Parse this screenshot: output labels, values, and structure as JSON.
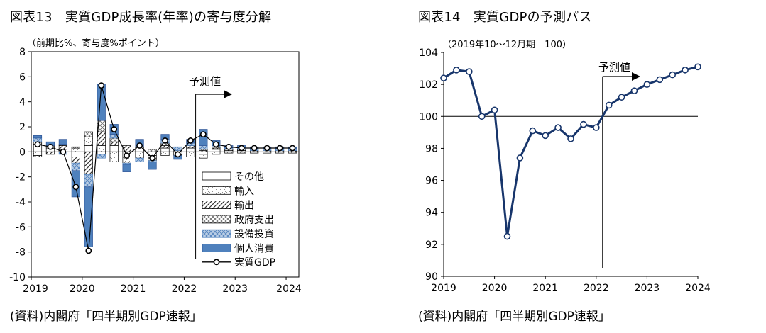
{
  "chart_data": [
    {
      "type": "bar",
      "stacked": true,
      "title": "図表13　実質GDP成長率(年率)の寄与度分解",
      "unit_label": "（前期比%、寄与度%ポイント）",
      "annotation": "予測値",
      "source": "(資料)内閣府「四半期別GDP速報」",
      "ylim": [
        -10,
        8
      ],
      "yticks": [
        -10,
        -8,
        -6,
        -4,
        -2,
        0,
        2,
        4,
        6,
        8
      ],
      "xtick_labels": [
        "2019",
        "2020",
        "2021",
        "2022",
        "2023",
        "2024"
      ],
      "forecast_start_index": 13,
      "grid": false,
      "legend_position": "bottom-right",
      "series": [
        {
          "name": "その他",
          "values": [
            0.6,
            0.3,
            0.2,
            -0.4,
            0.5,
            -0.2,
            0.5,
            -0.4,
            0.4,
            -0.3,
            0.3,
            -0.2,
            0.3,
            -0.2,
            0.2,
            0.1,
            0.1,
            0.0,
            0.0,
            0.0,
            0.0
          ]
        },
        {
          "name": "輸入",
          "values": [
            -0.3,
            0.1,
            0.0,
            0.3,
            0.7,
            0.5,
            -0.8,
            -0.5,
            -0.4,
            -0.2,
            -0.3,
            0.1,
            -0.4,
            -0.3,
            -0.2,
            -0.1,
            -0.1,
            -0.1,
            -0.1,
            -0.1,
            -0.1
          ]
        },
        {
          "name": "輸出",
          "values": [
            -0.1,
            -0.2,
            0.3,
            -0.5,
            -1.8,
            1.1,
            0.3,
            0.5,
            -0.1,
            -0.2,
            0.2,
            -0.1,
            0.2,
            0.1,
            0.1,
            0.1,
            0.1,
            0.1,
            0.1,
            0.1,
            0.1
          ]
        },
        {
          "name": "政府支出",
          "values": [
            0.2,
            0.1,
            0.1,
            0.1,
            0.4,
            0.9,
            0.3,
            0.0,
            0.0,
            0.2,
            0.2,
            0.0,
            0.0,
            0.1,
            0.1,
            0.0,
            0.0,
            0.0,
            0.0,
            0.0,
            0.0
          ]
        },
        {
          "name": "設備投資",
          "values": [
            0.3,
            0.0,
            -0.2,
            -0.6,
            -1.0,
            -0.3,
            0.3,
            -0.1,
            -0.3,
            -0.1,
            0.3,
            0.3,
            0.2,
            0.3,
            0.1,
            0.1,
            0.1,
            0.1,
            0.1,
            0.1,
            0.1
          ]
        },
        {
          "name": "個人消費",
          "values": [
            0.2,
            0.3,
            0.4,
            -2.1,
            -4.8,
            2.9,
            0.8,
            -0.6,
            0.6,
            -0.6,
            0.4,
            -0.3,
            0.3,
            1.3,
            0.4,
            0.2,
            0.2,
            0.2,
            0.2,
            0.2,
            0.2
          ]
        }
      ],
      "line": {
        "name": "実質GDP",
        "values": [
          0.6,
          0.4,
          0.0,
          -2.8,
          -7.9,
          5.3,
          1.8,
          -0.3,
          0.5,
          -0.5,
          0.9,
          -0.2,
          0.9,
          1.4,
          0.6,
          0.4,
          0.3,
          0.3,
          0.3,
          0.3,
          0.3
        ]
      }
    },
    {
      "type": "line",
      "title": "図表14　実質GDPの予測パス",
      "unit_label": "（2019年10～12月期＝100）",
      "annotation": "予測値",
      "source": "(資料)内閣府「四半期別GDP速報」",
      "ylim": [
        90,
        104
      ],
      "yticks": [
        90,
        92,
        94,
        96,
        98,
        100,
        102,
        104
      ],
      "xtick_labels": [
        "2019",
        "2020",
        "2021",
        "2022",
        "2023",
        "2024"
      ],
      "reference_line": 100,
      "forecast_start_index": 13,
      "grid": false,
      "values": [
        102.4,
        102.9,
        102.8,
        100.0,
        100.4,
        92.5,
        97.4,
        99.1,
        98.8,
        99.3,
        98.6,
        99.5,
        99.3,
        100.7,
        101.2,
        101.6,
        102.0,
        102.3,
        102.6,
        102.9,
        103.1
      ]
    }
  ],
  "colors": {
    "accent_blue": "#4f81bd",
    "line_navy": "#17356b",
    "axis": "#000000"
  }
}
